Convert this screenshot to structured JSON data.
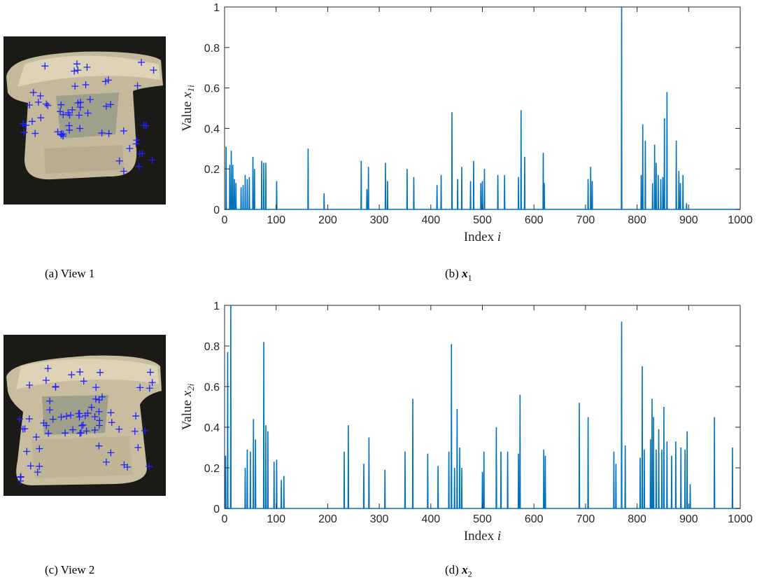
{
  "captions": {
    "a": "(a)  View 1",
    "b_prefix": "(b)  ",
    "b_sym": "x",
    "b_sub": "1",
    "c": "(c)  View 2",
    "d_prefix": "(d)  ",
    "d_sym": "x",
    "d_sub": "2"
  },
  "photos": {
    "view1_markers": 60,
    "view2_markers": 70,
    "marker_color": "#2020ff"
  },
  "colors": {
    "line": "#0072bd",
    "axis": "#262626",
    "background": "#ffffff"
  },
  "chart_data": [
    {
      "type": "line",
      "xlabel_text": "Index ",
      "xlabel_var": "i",
      "ylabel_text": "Value ",
      "ylabel_var": "x",
      "ylabel_sub": "1i",
      "xlim": [
        0,
        1000
      ],
      "ylim": [
        0,
        1
      ],
      "xticks": [
        0,
        100,
        200,
        300,
        400,
        500,
        600,
        700,
        800,
        900,
        1000
      ],
      "yticks": [
        0,
        0.2,
        0.4,
        0.6,
        0.8,
        1
      ],
      "ytick_labels": [
        "0",
        "0.2",
        "0.4",
        "0.6",
        "0.8",
        "1"
      ],
      "spikes": [
        [
          3,
          0.31
        ],
        [
          10,
          0.22
        ],
        [
          13,
          0.29
        ],
        [
          16,
          0.22
        ],
        [
          19,
          0.15
        ],
        [
          22,
          0.13
        ],
        [
          32,
          0.11
        ],
        [
          36,
          0.12
        ],
        [
          40,
          0.17
        ],
        [
          44,
          0.15
        ],
        [
          48,
          0.16
        ],
        [
          55,
          0.26
        ],
        [
          58,
          0.2
        ],
        [
          72,
          0.24
        ],
        [
          76,
          0.23
        ],
        [
          80,
          0.23
        ],
        [
          101,
          0.14
        ],
        [
          162,
          0.3
        ],
        [
          193,
          0.08
        ],
        [
          265,
          0.24
        ],
        [
          276,
          0.1
        ],
        [
          279,
          0.21
        ],
        [
          312,
          0.23
        ],
        [
          316,
          0.14
        ],
        [
          354,
          0.2
        ],
        [
          367,
          0.16
        ],
        [
          412,
          0.12
        ],
        [
          420,
          0.17
        ],
        [
          441,
          0.48
        ],
        [
          452,
          0.15
        ],
        [
          460,
          0.21
        ],
        [
          477,
          0.14
        ],
        [
          483,
          0.24
        ],
        [
          497,
          0.13
        ],
        [
          500,
          0.14
        ],
        [
          504,
          0.2
        ],
        [
          530,
          0.17
        ],
        [
          543,
          0.17
        ],
        [
          570,
          0.16
        ],
        [
          575,
          0.49
        ],
        [
          582,
          0.26
        ],
        [
          618,
          0.28
        ],
        [
          620,
          0.13
        ],
        [
          705,
          0.15
        ],
        [
          710,
          0.21
        ],
        [
          713,
          0.14
        ],
        [
          770,
          1.0
        ],
        [
          808,
          0.17
        ],
        [
          811,
          0.42
        ],
        [
          816,
          0.34
        ],
        [
          830,
          0.13
        ],
        [
          834,
          0.32
        ],
        [
          837,
          0.23
        ],
        [
          841,
          0.17
        ],
        [
          846,
          0.15
        ],
        [
          850,
          0.16
        ],
        [
          853,
          0.45
        ],
        [
          858,
          0.58
        ],
        [
          876,
          0.34
        ],
        [
          881,
          0.19
        ],
        [
          884,
          0.13
        ],
        [
          889,
          0.17
        ],
        [
          896,
          0.03
        ]
      ]
    },
    {
      "type": "line",
      "xlabel_text": "Index ",
      "xlabel_var": "i",
      "ylabel_text": "Value ",
      "ylabel_var": "x",
      "ylabel_sub": "2i",
      "xlim": [
        0,
        1000
      ],
      "ylim": [
        0,
        1
      ],
      "xticks": [
        0,
        100,
        200,
        300,
        400,
        500,
        600,
        700,
        800,
        900,
        1000
      ],
      "yticks": [
        0,
        0.2,
        0.4,
        0.6,
        0.8,
        1
      ],
      "ytick_labels": [
        "0",
        "0.2",
        "0.4",
        "0.6",
        "0.8",
        "1"
      ],
      "spikes": [
        [
          2,
          0.26
        ],
        [
          6,
          0.77
        ],
        [
          12,
          1.0
        ],
        [
          40,
          0.2
        ],
        [
          44,
          0.29
        ],
        [
          50,
          0.28
        ],
        [
          56,
          0.44
        ],
        [
          60,
          0.34
        ],
        [
          76,
          0.82
        ],
        [
          80,
          0.41
        ],
        [
          84,
          0.38
        ],
        [
          96,
          0.23
        ],
        [
          101,
          0.24
        ],
        [
          110,
          0.14
        ],
        [
          115,
          0.16
        ],
        [
          232,
          0.28
        ],
        [
          240,
          0.41
        ],
        [
          270,
          0.22
        ],
        [
          280,
          0.35
        ],
        [
          311,
          0.19
        ],
        [
          350,
          0.28
        ],
        [
          365,
          0.54
        ],
        [
          394,
          0.27
        ],
        [
          414,
          0.21
        ],
        [
          435,
          0.28
        ],
        [
          440,
          0.81
        ],
        [
          446,
          0.2
        ],
        [
          451,
          0.49
        ],
        [
          456,
          0.3
        ],
        [
          460,
          0.2
        ],
        [
          500,
          0.18
        ],
        [
          503,
          0.28
        ],
        [
          527,
          0.4
        ],
        [
          536,
          0.28
        ],
        [
          549,
          0.28
        ],
        [
          570,
          0.27
        ],
        [
          573,
          0.56
        ],
        [
          619,
          0.29
        ],
        [
          622,
          0.26
        ],
        [
          688,
          0.52
        ],
        [
          705,
          0.45
        ],
        [
          755,
          0.28
        ],
        [
          759,
          0.22
        ],
        [
          770,
          0.92
        ],
        [
          777,
          0.31
        ],
        [
          806,
          0.25
        ],
        [
          810,
          0.7
        ],
        [
          814,
          0.29
        ],
        [
          826,
          0.34
        ],
        [
          829,
          0.54
        ],
        [
          832,
          0.45
        ],
        [
          837,
          0.29
        ],
        [
          842,
          0.39
        ],
        [
          848,
          0.29
        ],
        [
          852,
          0.5
        ],
        [
          858,
          0.33
        ],
        [
          867,
          0.26
        ],
        [
          875,
          0.33
        ],
        [
          885,
          0.3
        ],
        [
          893,
          0.29
        ],
        [
          897,
          0.38
        ],
        [
          903,
          0.12
        ],
        [
          950,
          0.45
        ],
        [
          985,
          0.3
        ]
      ]
    }
  ]
}
